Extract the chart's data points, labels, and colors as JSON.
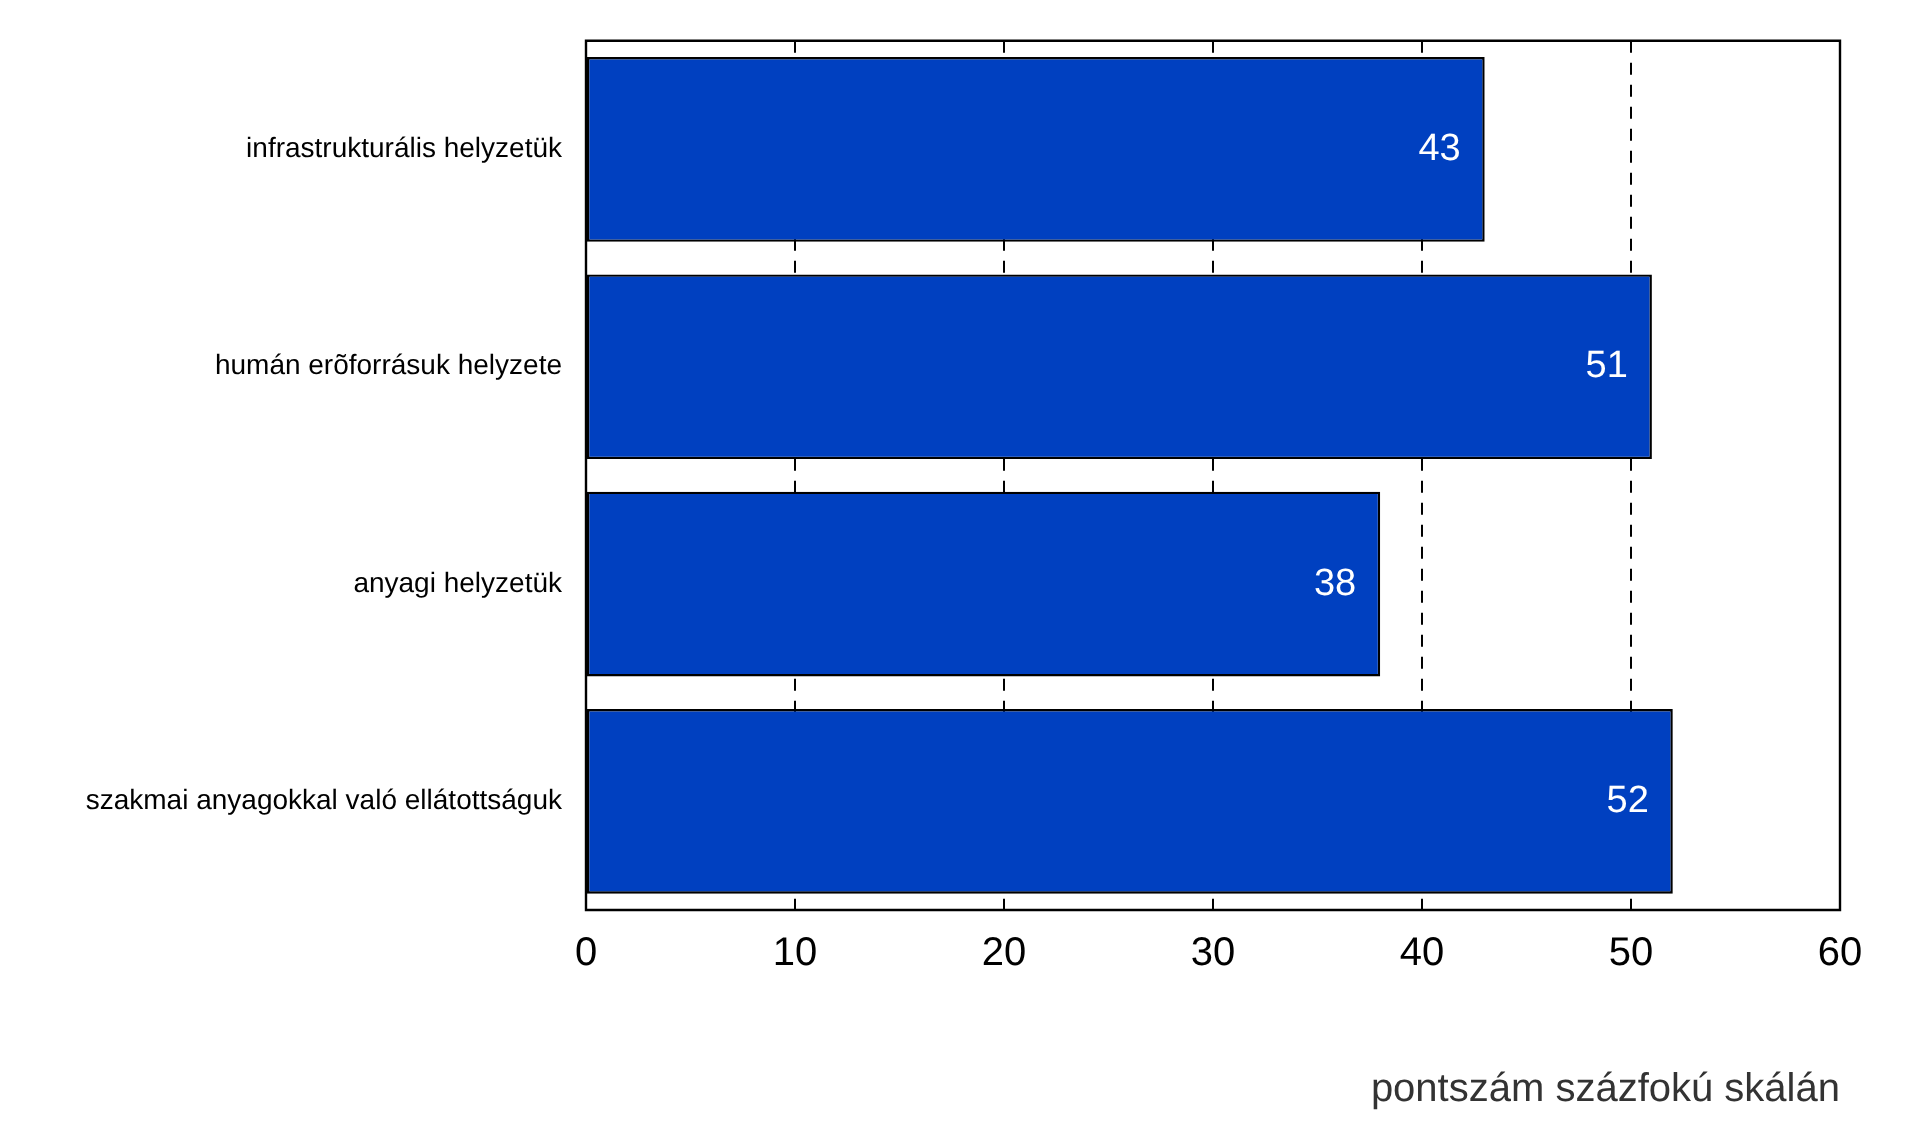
{
  "chart_data": {
    "type": "bar",
    "orientation": "horizontal",
    "categories": [
      "infrastrukturális helyzetük",
      "humán erõforrásuk helyzete",
      "anyagi helyzetük",
      "szakmai anyagokkal való ellátottságuk"
    ],
    "values": [
      43,
      51,
      38,
      52
    ],
    "color": "#0040c0",
    "xlim": [
      0,
      60
    ],
    "xticks": [
      0,
      10,
      20,
      30,
      40,
      50,
      60
    ],
    "xlabel": "pontszám százfokú skálán",
    "grid": "x",
    "line_style": "dashed",
    "data_labels": true,
    "legend": false
  }
}
